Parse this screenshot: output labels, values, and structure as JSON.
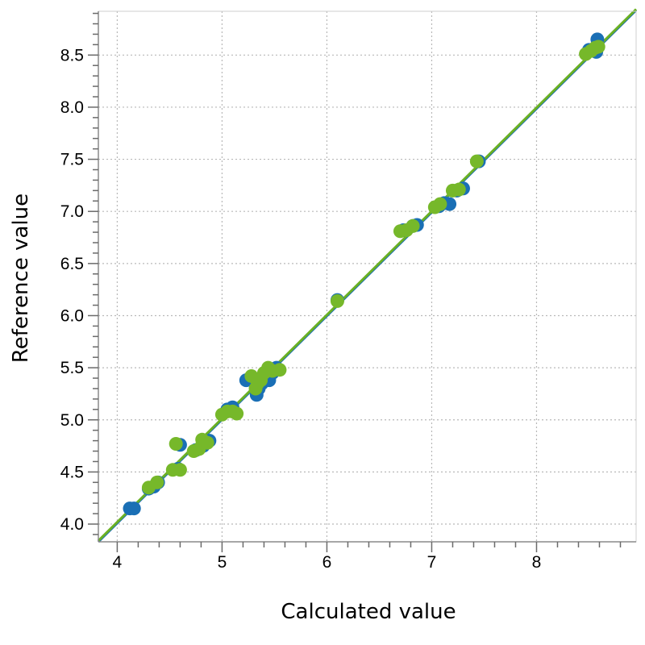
{
  "chart_data": {
    "type": "scatter",
    "title": "",
    "xlabel": "Calculated value",
    "ylabel": "Reference value",
    "xlim": [
      3.82,
      8.95
    ],
    "ylim": [
      3.83,
      8.92
    ],
    "x_ticks": [
      4,
      5,
      6,
      7,
      8
    ],
    "x_tick_labels": [
      "4",
      "5",
      "6",
      "7",
      "8"
    ],
    "y_ticks": [
      4.0,
      4.5,
      5.0,
      5.5,
      6.0,
      6.5,
      7.0,
      7.5,
      8.0,
      8.5
    ],
    "y_tick_labels": [
      "4.0",
      "4.5",
      "5.0",
      "5.5",
      "6.0",
      "6.5",
      "7.0",
      "7.5",
      "8.0",
      "8.5"
    ],
    "grid": true,
    "legend": "none",
    "series": [
      {
        "color": "#1a6fb5",
        "points": [
          [
            4.12,
            4.15
          ],
          [
            4.16,
            4.15
          ],
          [
            4.3,
            4.34
          ],
          [
            4.35,
            4.36
          ],
          [
            4.39,
            4.4
          ],
          [
            4.58,
            4.53
          ],
          [
            4.6,
            4.76
          ],
          [
            4.75,
            4.71
          ],
          [
            4.82,
            4.75
          ],
          [
            4.88,
            4.8
          ],
          [
            5.05,
            5.1
          ],
          [
            5.1,
            5.12
          ],
          [
            5.23,
            5.38
          ],
          [
            5.33,
            5.24
          ],
          [
            5.35,
            5.3
          ],
          [
            5.38,
            5.35
          ],
          [
            5.42,
            5.42
          ],
          [
            5.45,
            5.38
          ],
          [
            5.48,
            5.45
          ],
          [
            5.52,
            5.5
          ],
          [
            6.1,
            6.15
          ],
          [
            6.73,
            6.82
          ],
          [
            6.82,
            6.86
          ],
          [
            6.86,
            6.87
          ],
          [
            7.07,
            7.05
          ],
          [
            7.12,
            7.08
          ],
          [
            7.17,
            7.07
          ],
          [
            7.24,
            7.2
          ],
          [
            7.3,
            7.22
          ],
          [
            7.45,
            7.48
          ],
          [
            8.5,
            8.55
          ],
          [
            8.55,
            8.55
          ],
          [
            8.57,
            8.53
          ],
          [
            8.58,
            8.65
          ]
        ]
      },
      {
        "color": "#76b82a",
        "points": [
          [
            4.3,
            4.35
          ],
          [
            4.38,
            4.4
          ],
          [
            4.53,
            4.52
          ],
          [
            4.56,
            4.77
          ],
          [
            4.6,
            4.52
          ],
          [
            4.73,
            4.7
          ],
          [
            4.78,
            4.72
          ],
          [
            4.81,
            4.81
          ],
          [
            4.86,
            4.78
          ],
          [
            5.0,
            5.05
          ],
          [
            5.05,
            5.08
          ],
          [
            5.1,
            5.08
          ],
          [
            5.14,
            5.06
          ],
          [
            5.28,
            5.42
          ],
          [
            5.32,
            5.3
          ],
          [
            5.34,
            5.35
          ],
          [
            5.37,
            5.38
          ],
          [
            5.4,
            5.45
          ],
          [
            5.44,
            5.5
          ],
          [
            5.48,
            5.47
          ],
          [
            5.55,
            5.48
          ],
          [
            6.1,
            6.14
          ],
          [
            6.7,
            6.81
          ],
          [
            6.76,
            6.82
          ],
          [
            6.82,
            6.86
          ],
          [
            7.03,
            7.04
          ],
          [
            7.08,
            7.07
          ],
          [
            7.2,
            7.2
          ],
          [
            7.26,
            7.21
          ],
          [
            7.43,
            7.48
          ],
          [
            8.47,
            8.51
          ],
          [
            8.52,
            8.54
          ],
          [
            8.56,
            8.57
          ],
          [
            8.59,
            8.58
          ]
        ]
      }
    ],
    "lines": [
      {
        "color": "#1a6fb5",
        "from": [
          3.82,
          3.83
        ],
        "to": [
          8.95,
          8.93
        ]
      },
      {
        "color": "#6ab023",
        "from": [
          3.82,
          3.84
        ],
        "to": [
          8.95,
          8.94
        ]
      }
    ]
  }
}
